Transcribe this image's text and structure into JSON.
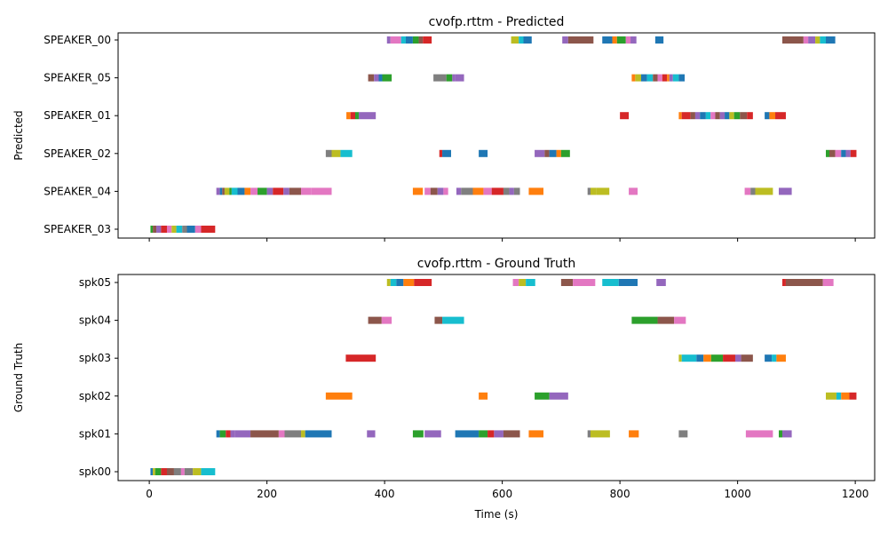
{
  "palette": [
    "#1f77b4",
    "#ff7f0e",
    "#2ca02c",
    "#d62728",
    "#9467bd",
    "#8c564b",
    "#e377c2",
    "#7f7f7f",
    "#bcbd22",
    "#17becf"
  ],
  "chart_data": [
    {
      "type": "timeline",
      "title": "cvofp.rttm - Predicted",
      "ylabel": "Predicted",
      "xlabel": "",
      "xlim": [
        -53,
        1233
      ],
      "xticks": [
        0,
        200,
        400,
        600,
        800,
        1000,
        1200
      ],
      "show_xtick_labels": false,
      "grid": false,
      "rows": [
        {
          "label": "SPEAKER_00",
          "segments": [
            [
              404,
              410,
              4
            ],
            [
              410,
              428,
              6
            ],
            [
              428,
              436,
              9
            ],
            [
              436,
              448,
              0
            ],
            [
              448,
              458,
              2
            ],
            [
              458,
              465,
              5
            ],
            [
              465,
              480,
              3
            ],
            [
              615,
              628,
              8
            ],
            [
              628,
              636,
              9
            ],
            [
              636,
              650,
              0
            ],
            [
              702,
              712,
              4
            ],
            [
              712,
              755,
              5
            ],
            [
              770,
              787,
              0
            ],
            [
              787,
              795,
              1
            ],
            [
              795,
              810,
              2
            ],
            [
              810,
              818,
              6
            ],
            [
              818,
              828,
              4
            ],
            [
              860,
              874,
              0
            ],
            [
              1076,
              1112,
              5
            ],
            [
              1112,
              1120,
              6
            ],
            [
              1120,
              1132,
              4
            ],
            [
              1132,
              1140,
              8
            ],
            [
              1140,
              1150,
              9
            ],
            [
              1150,
              1166,
              0
            ]
          ]
        },
        {
          "label": "SPEAKER_05",
          "segments": [
            [
              372,
              382,
              5
            ],
            [
              382,
              390,
              4
            ],
            [
              390,
              396,
              0
            ],
            [
              396,
              412,
              2
            ],
            [
              483,
              505,
              7
            ],
            [
              505,
              515,
              2
            ],
            [
              515,
              520,
              4
            ],
            [
              520,
              535,
              4
            ],
            [
              820,
              826,
              1
            ],
            [
              826,
              836,
              8
            ],
            [
              836,
              846,
              0
            ],
            [
              846,
              856,
              9
            ],
            [
              856,
              864,
              5
            ],
            [
              864,
              872,
              6
            ],
            [
              872,
              880,
              3
            ],
            [
              880,
              884,
              1
            ],
            [
              884,
              890,
              4
            ],
            [
              890,
              900,
              9
            ],
            [
              900,
              910,
              0
            ]
          ]
        },
        {
          "label": "SPEAKER_01",
          "segments": [
            [
              335,
              342,
              1
            ],
            [
              342,
              350,
              3
            ],
            [
              350,
              356,
              2
            ],
            [
              356,
              385,
              4
            ],
            [
              800,
              815,
              3
            ],
            [
              900,
              905,
              1
            ],
            [
              905,
              920,
              3
            ],
            [
              920,
              928,
              5
            ],
            [
              928,
              936,
              4
            ],
            [
              936,
              946,
              0
            ],
            [
              946,
              954,
              9
            ],
            [
              954,
              962,
              6
            ],
            [
              962,
              970,
              5
            ],
            [
              970,
              978,
              4
            ],
            [
              978,
              986,
              0
            ],
            [
              986,
              994,
              8
            ],
            [
              994,
              1004,
              2
            ],
            [
              1004,
              1016,
              5
            ],
            [
              1016,
              1026,
              3
            ],
            [
              1046,
              1054,
              0
            ],
            [
              1054,
              1064,
              1
            ],
            [
              1064,
              1082,
              3
            ]
          ]
        },
        {
          "label": "SPEAKER_02",
          "segments": [
            [
              300,
              310,
              7
            ],
            [
              310,
              325,
              8
            ],
            [
              325,
              345,
              9
            ],
            [
              493,
              498,
              3
            ],
            [
              498,
              513,
              0
            ],
            [
              560,
              575,
              0
            ],
            [
              655,
              672,
              4
            ],
            [
              672,
              680,
              5
            ],
            [
              680,
              692,
              0
            ],
            [
              692,
              700,
              1
            ],
            [
              700,
              715,
              2
            ],
            [
              1150,
              1156,
              2
            ],
            [
              1156,
              1166,
              5
            ],
            [
              1166,
              1176,
              6
            ],
            [
              1176,
              1184,
              0
            ],
            [
              1184,
              1192,
              4
            ],
            [
              1192,
              1202,
              3
            ]
          ]
        },
        {
          "label": "SPEAKER_04",
          "segments": [
            [
              114,
              120,
              4
            ],
            [
              120,
              124,
              0
            ],
            [
              124,
              128,
              5
            ],
            [
              128,
              136,
              8
            ],
            [
              136,
              140,
              2
            ],
            [
              140,
              150,
              9
            ],
            [
              150,
              162,
              0
            ],
            [
              162,
              172,
              1
            ],
            [
              172,
              184,
              6
            ],
            [
              184,
              200,
              2
            ],
            [
              200,
              210,
              4
            ],
            [
              210,
              228,
              3
            ],
            [
              228,
              238,
              4
            ],
            [
              238,
              258,
              5
            ],
            [
              258,
              275,
              6
            ],
            [
              275,
              310,
              6
            ],
            [
              448,
              465,
              1
            ],
            [
              468,
              478,
              6
            ],
            [
              478,
              490,
              5
            ],
            [
              490,
              500,
              4
            ],
            [
              500,
              508,
              6
            ],
            [
              522,
              530,
              4
            ],
            [
              530,
              550,
              7
            ],
            [
              550,
              568,
              1
            ],
            [
              568,
              582,
              6
            ],
            [
              582,
              602,
              3
            ],
            [
              602,
              612,
              7
            ],
            [
              612,
              620,
              4
            ],
            [
              620,
              630,
              7
            ],
            [
              645,
              670,
              1
            ],
            [
              745,
              750,
              7
            ],
            [
              750,
              760,
              8
            ],
            [
              760,
              782,
              8
            ],
            [
              815,
              830,
              6
            ],
            [
              1012,
              1022,
              6
            ],
            [
              1022,
              1030,
              7
            ],
            [
              1030,
              1060,
              8
            ],
            [
              1070,
              1092,
              4
            ]
          ]
        },
        {
          "label": "SPEAKER_03",
          "segments": [
            [
              2,
              6,
              2
            ],
            [
              6,
              12,
              5
            ],
            [
              12,
              20,
              4
            ],
            [
              20,
              30,
              3
            ],
            [
              30,
              38,
              6
            ],
            [
              38,
              46,
              8
            ],
            [
              46,
              56,
              9
            ],
            [
              56,
              64,
              7
            ],
            [
              64,
              78,
              0
            ],
            [
              78,
              88,
              6
            ],
            [
              88,
              112,
              3
            ]
          ]
        }
      ]
    },
    {
      "type": "timeline",
      "title": "cvofp.rttm - Ground Truth",
      "ylabel": "Ground Truth",
      "xlabel": "Time (s)",
      "xlim": [
        -53,
        1233
      ],
      "xticks": [
        0,
        200,
        400,
        600,
        800,
        1000,
        1200
      ],
      "show_xtick_labels": true,
      "grid": false,
      "rows": [
        {
          "label": "spk05",
          "segments": [
            [
              404,
              410,
              8
            ],
            [
              410,
              420,
              9
            ],
            [
              420,
              432,
              0
            ],
            [
              432,
              450,
              1
            ],
            [
              450,
              480,
              3
            ],
            [
              618,
              628,
              6
            ],
            [
              628,
              640,
              8
            ],
            [
              640,
              656,
              9
            ],
            [
              700,
              720,
              5
            ],
            [
              720,
              758,
              6
            ],
            [
              770,
              798,
              9
            ],
            [
              798,
              830,
              0
            ],
            [
              862,
              878,
              4
            ],
            [
              1076,
              1082,
              3
            ],
            [
              1082,
              1145,
              5
            ],
            [
              1145,
              1163,
              6
            ]
          ]
        },
        {
          "label": "spk04",
          "segments": [
            [
              372,
              395,
              5
            ],
            [
              395,
              412,
              6
            ],
            [
              485,
              498,
              5
            ],
            [
              498,
              535,
              9
            ],
            [
              820,
              864,
              2
            ],
            [
              864,
              892,
              5
            ],
            [
              892,
              912,
              6
            ]
          ]
        },
        {
          "label": "spk03",
          "segments": [
            [
              334,
              385,
              3
            ],
            [
              900,
              905,
              8
            ],
            [
              905,
              930,
              9
            ],
            [
              930,
              942,
              0
            ],
            [
              942,
              955,
              1
            ],
            [
              955,
              975,
              2
            ],
            [
              975,
              996,
              3
            ],
            [
              996,
              1006,
              4
            ],
            [
              1006,
              1026,
              5
            ],
            [
              1046,
              1058,
              0
            ],
            [
              1058,
              1066,
              9
            ],
            [
              1066,
              1082,
              1
            ]
          ]
        },
        {
          "label": "spk02",
          "segments": [
            [
              300,
              345,
              1
            ],
            [
              560,
              575,
              1
            ],
            [
              655,
              680,
              2
            ],
            [
              680,
              712,
              4
            ],
            [
              1150,
              1168,
              8
            ],
            [
              1168,
              1176,
              9
            ],
            [
              1176,
              1190,
              1
            ],
            [
              1190,
              1202,
              3
            ]
          ]
        },
        {
          "label": "spk01",
          "segments": [
            [
              114,
              120,
              0
            ],
            [
              120,
              130,
              2
            ],
            [
              130,
              138,
              3
            ],
            [
              138,
              145,
              4
            ],
            [
              145,
              172,
              4
            ],
            [
              172,
              220,
              5
            ],
            [
              220,
              230,
              6
            ],
            [
              230,
              258,
              7
            ],
            [
              258,
              265,
              8
            ],
            [
              265,
              310,
              0
            ],
            [
              370,
              384,
              4
            ],
            [
              448,
              466,
              2
            ],
            [
              468,
              496,
              4
            ],
            [
              520,
              560,
              0
            ],
            [
              560,
              575,
              2
            ],
            [
              575,
              586,
              3
            ],
            [
              586,
              602,
              4
            ],
            [
              602,
              630,
              5
            ],
            [
              645,
              670,
              1
            ],
            [
              745,
              750,
              7
            ],
            [
              750,
              783,
              8
            ],
            [
              815,
              832,
              1
            ],
            [
              900,
              915,
              7
            ],
            [
              1014,
              1060,
              6
            ],
            [
              1070,
              1076,
              2
            ],
            [
              1076,
              1092,
              4
            ]
          ]
        },
        {
          "label": "spk00",
          "segments": [
            [
              2,
              6,
              0
            ],
            [
              6,
              10,
              8
            ],
            [
              10,
              20,
              2
            ],
            [
              20,
              30,
              3
            ],
            [
              30,
              42,
              5
            ],
            [
              42,
              54,
              7
            ],
            [
              54,
              60,
              6
            ],
            [
              60,
              74,
              7
            ],
            [
              74,
              88,
              8
            ],
            [
              88,
              112,
              9
            ]
          ]
        }
      ]
    }
  ]
}
